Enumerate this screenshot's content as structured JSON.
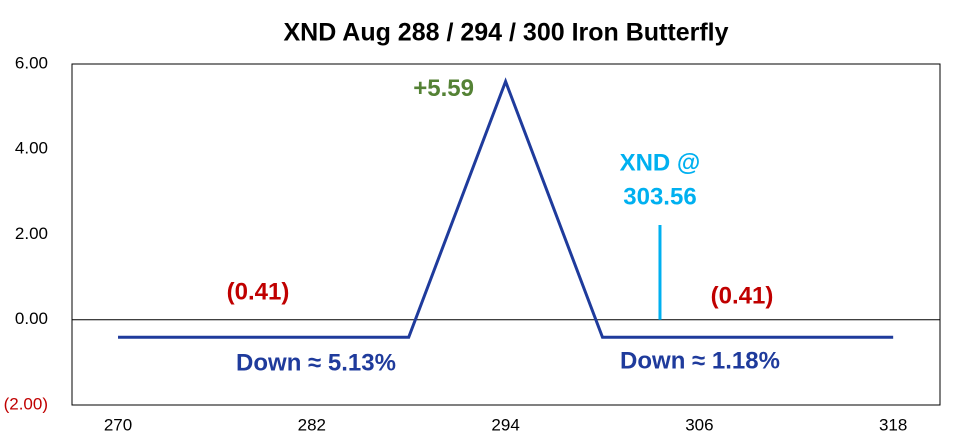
{
  "chart_data": {
    "type": "line",
    "title": "XND Aug 288 / 294 / 300 Iron Butterfly",
    "x": [
      270,
      288,
      294,
      300,
      318
    ],
    "values": [
      -0.41,
      -0.41,
      5.59,
      -0.41,
      -0.41
    ],
    "value_labels": [
      null,
      null,
      "+5.59",
      null,
      null
    ],
    "value_label_color": "#548235",
    "color": "#1f3b9c",
    "xlim": [
      267.15,
      320.9
    ],
    "xticks": [
      270,
      282,
      294,
      306,
      318
    ],
    "ylim": [
      -2,
      6
    ],
    "yticks": [
      {
        "value": -2,
        "label": "(2.00)"
      },
      {
        "value": 0,
        "label": "0.00"
      },
      {
        "value": 2,
        "label": "2.00"
      },
      {
        "value": 4,
        "label": "4.00"
      },
      {
        "value": 6,
        "label": "6.00"
      }
    ],
    "negative_tick_color": "#c00000",
    "annotations": [
      {
        "text": "(0.41)",
        "color": "#c00000"
      },
      {
        "text": "(0.41)",
        "color": "#c00000"
      },
      {
        "text": "Down ≈ 5.13%",
        "color": "#1f3b9c"
      },
      {
        "text": "Down ≈ 1.18%",
        "color": "#1f3b9c"
      }
    ],
    "marker": {
      "x": 303.56,
      "label": "XND @",
      "value_label": "303.56",
      "color": "#00b0f0"
    }
  }
}
